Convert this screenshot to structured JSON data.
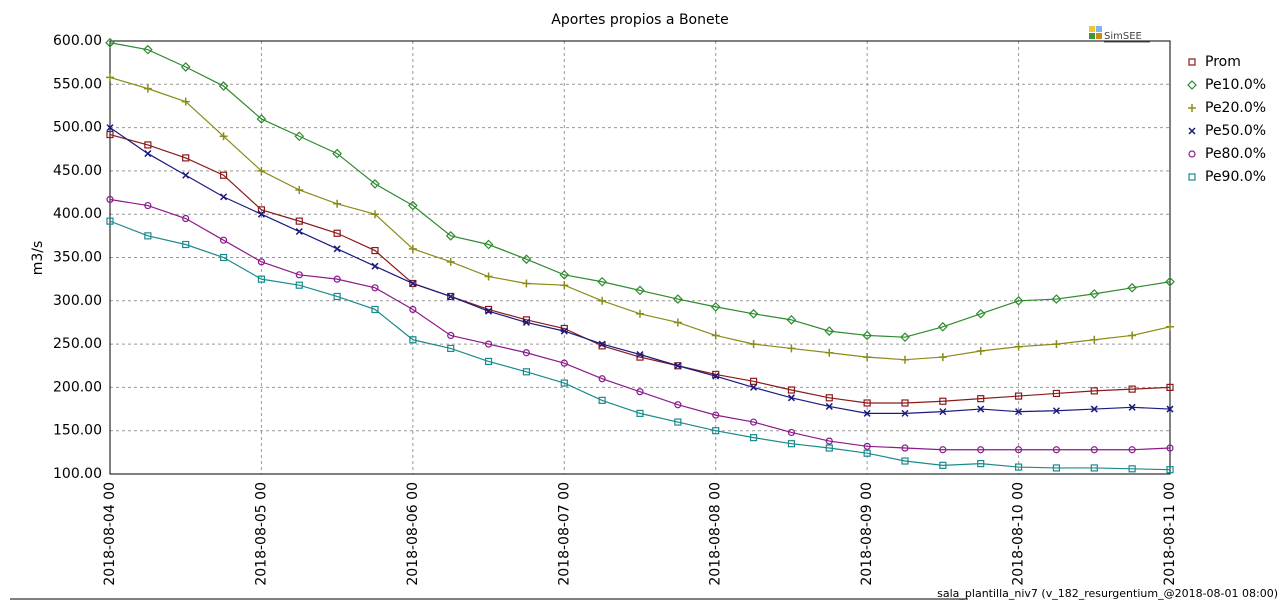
{
  "chart_data": {
    "type": "line",
    "title": "Aportes propios a Bonete",
    "ylabel": "m3/s",
    "logo": "SimSEE",
    "footer": "sala_plantilla_niv7 (v_182_resurgentium_@2018-08-01 08:00)",
    "x": [
      "2018-08-04 00",
      "2018-08-04 06",
      "2018-08-04 12",
      "2018-08-04 18",
      "2018-08-05 00",
      "2018-08-05 06",
      "2018-08-05 12",
      "2018-08-05 18",
      "2018-08-06 00",
      "2018-08-06 06",
      "2018-08-06 12",
      "2018-08-06 18",
      "2018-08-07 00",
      "2018-08-07 06",
      "2018-08-07 12",
      "2018-08-07 18",
      "2018-08-08 00",
      "2018-08-08 06",
      "2018-08-08 12",
      "2018-08-08 18",
      "2018-08-09 00",
      "2018-08-09 06",
      "2018-08-09 12",
      "2018-08-09 18",
      "2018-08-10 00",
      "2018-08-10 06",
      "2018-08-10 12",
      "2018-08-10 18",
      "2018-08-11 00"
    ],
    "xlim": [
      "2018-08-04 00",
      "2018-08-11 00"
    ],
    "xticks": [
      "2018-08-04 00",
      "2018-08-05 00",
      "2018-08-06 00",
      "2018-08-07 00",
      "2018-08-08 00",
      "2018-08-09 00",
      "2018-08-10 00",
      "2018-08-11 00"
    ],
    "ylim": [
      100,
      600
    ],
    "yticks": [
      {
        "value": 100,
        "label": "100.00"
      },
      {
        "value": 150,
        "label": "150.00"
      },
      {
        "value": 200,
        "label": "200.00"
      },
      {
        "value": 250,
        "label": "250.00"
      },
      {
        "value": 300,
        "label": "300.00"
      },
      {
        "value": 350,
        "label": "350.00"
      },
      {
        "value": 400,
        "label": "400.00"
      },
      {
        "value": 450,
        "label": "450.00"
      },
      {
        "value": 500,
        "label": "500.00"
      },
      {
        "value": 550,
        "label": "550.00"
      },
      {
        "value": 600,
        "label": "600.00"
      }
    ],
    "grid": true,
    "legend": "right",
    "series": [
      {
        "name": "Prom",
        "color": "#8b1a1a",
        "marker": "square",
        "values": [
          492,
          480,
          465,
          445,
          405,
          392,
          378,
          358,
          320,
          305,
          290,
          278,
          268,
          248,
          235,
          225,
          215,
          207,
          197,
          188,
          182,
          182,
          184,
          187,
          190,
          193,
          196,
          198,
          200
        ]
      },
      {
        "name": "Pe10.0%",
        "color": "#2e8b2e",
        "marker": "diamond",
        "values": [
          598,
          590,
          570,
          548,
          510,
          490,
          470,
          435,
          410,
          375,
          365,
          348,
          330,
          322,
          312,
          302,
          293,
          285,
          278,
          265,
          260,
          258,
          270,
          285,
          300,
          302,
          308,
          315,
          322
        ]
      },
      {
        "name": "Pe20.0%",
        "color": "#8b8b1a",
        "marker": "plus",
        "values": [
          558,
          545,
          530,
          490,
          450,
          428,
          412,
          400,
          360,
          345,
          328,
          320,
          318,
          300,
          285,
          275,
          260,
          250,
          245,
          240,
          235,
          232,
          235,
          242,
          247,
          250,
          255,
          260,
          270
        ]
      },
      {
        "name": "Pe50.0%",
        "color": "#1a1a80",
        "marker": "cross",
        "values": [
          500,
          470,
          445,
          420,
          400,
          380,
          360,
          340,
          320,
          305,
          288,
          275,
          265,
          250,
          238,
          225,
          213,
          200,
          188,
          178,
          170,
          170,
          172,
          175,
          172,
          173,
          175,
          177,
          175
        ]
      },
      {
        "name": "Pe80.0%",
        "color": "#8b1a8b",
        "marker": "circle",
        "values": [
          417,
          410,
          395,
          370,
          345,
          330,
          325,
          315,
          290,
          260,
          250,
          240,
          228,
          210,
          195,
          180,
          168,
          160,
          148,
          138,
          132,
          130,
          128,
          128,
          128,
          128,
          128,
          128,
          130
        ]
      },
      {
        "name": "Pe90.0%",
        "color": "#1a8b8b",
        "marker": "square",
        "values": [
          392,
          375,
          365,
          350,
          325,
          318,
          305,
          290,
          255,
          245,
          230,
          218,
          205,
          185,
          170,
          160,
          150,
          142,
          135,
          130,
          124,
          115,
          110,
          112,
          108,
          107,
          107,
          106,
          105
        ]
      }
    ]
  }
}
